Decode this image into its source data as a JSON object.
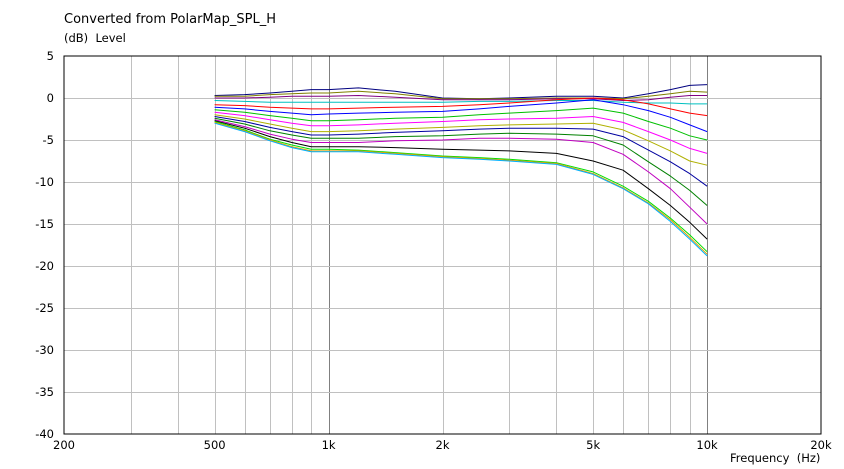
{
  "chart_data": {
    "type": "line",
    "title": "Converted from PolarMap_SPL_H",
    "ylabel": "(dB)  Level",
    "xlabel": "Frequency  (Hz)",
    "x_scale": "log",
    "xlim": [
      200,
      20000
    ],
    "ylim": [
      -40,
      5
    ],
    "grid": true,
    "legend": "none",
    "x_tick_labels": [
      {
        "value": 200,
        "label": "200"
      },
      {
        "value": 500,
        "label": "500"
      },
      {
        "value": 1000,
        "label": "1k"
      },
      {
        "value": 2000,
        "label": "2k"
      },
      {
        "value": 5000,
        "label": "5k"
      },
      {
        "value": 10000,
        "label": "10k"
      },
      {
        "value": 20000,
        "label": "20k"
      }
    ],
    "y_ticks": [
      5,
      0,
      -5,
      -10,
      -15,
      -20,
      -25,
      -30,
      -35,
      -40
    ],
    "x": [
      500,
      600,
      700,
      800,
      900,
      1000,
      1200,
      1500,
      2000,
      2500,
      3000,
      4000,
      5000,
      6000,
      7000,
      8000,
      9000,
      10000
    ],
    "series": [
      {
        "color": "#000080",
        "values": [
          0.3,
          0.4,
          0.6,
          0.8,
          1.0,
          1.0,
          1.2,
          0.8,
          0.0,
          -0.1,
          0.0,
          0.2,
          0.2,
          0.0,
          0.5,
          1.0,
          1.5,
          1.6
        ]
      },
      {
        "color": "#808000",
        "values": [
          0.2,
          0.2,
          0.4,
          0.5,
          0.6,
          0.6,
          0.8,
          0.5,
          -0.1,
          -0.1,
          -0.1,
          0.0,
          0.0,
          -0.1,
          0.2,
          0.5,
          0.8,
          0.7
        ]
      },
      {
        "color": "#800080",
        "values": [
          0.0,
          0.0,
          0.1,
          0.2,
          0.2,
          0.2,
          0.3,
          0.1,
          -0.2,
          -0.2,
          -0.2,
          -0.1,
          -0.1,
          -0.3,
          -0.2,
          0.1,
          0.3,
          0.3
        ]
      },
      {
        "color": "#00c0c0",
        "values": [
          -0.3,
          -0.4,
          -0.5,
          -0.5,
          -0.5,
          -0.5,
          -0.5,
          -0.5,
          -0.5,
          -0.4,
          -0.4,
          -0.3,
          -0.3,
          -0.5,
          -0.6,
          -0.6,
          -0.7,
          -0.7
        ]
      },
      {
        "color": "#ff0000",
        "values": [
          -0.8,
          -0.9,
          -1.1,
          -1.2,
          -1.3,
          -1.3,
          -1.2,
          -1.1,
          -1.0,
          -0.8,
          -0.6,
          -0.2,
          0.0,
          -0.2,
          -0.7,
          -1.3,
          -1.8,
          -2.1
        ]
      },
      {
        "color": "#0000ff",
        "values": [
          -1.1,
          -1.3,
          -1.6,
          -1.8,
          -2.0,
          -1.9,
          -1.8,
          -1.7,
          -1.6,
          -1.3,
          -1.0,
          -0.6,
          -0.2,
          -0.8,
          -1.5,
          -2.3,
          -3.2,
          -4.0
        ]
      },
      {
        "color": "#00c000",
        "values": [
          -1.4,
          -1.7,
          -2.1,
          -2.4,
          -2.7,
          -2.7,
          -2.6,
          -2.4,
          -2.3,
          -2.0,
          -1.8,
          -1.5,
          -1.2,
          -1.8,
          -2.8,
          -3.6,
          -4.5,
          -5.0
        ]
      },
      {
        "color": "#ff00ff",
        "values": [
          -1.7,
          -2.1,
          -2.6,
          -3.0,
          -3.3,
          -3.3,
          -3.2,
          -3.0,
          -2.8,
          -2.6,
          -2.5,
          -2.4,
          -2.2,
          -2.9,
          -4.0,
          -5.0,
          -6.0,
          -6.6
        ]
      },
      {
        "color": "#b0b000",
        "values": [
          -2.0,
          -2.5,
          -3.1,
          -3.6,
          -4.0,
          -4.0,
          -3.9,
          -3.7,
          -3.5,
          -3.3,
          -3.2,
          -3.1,
          -3.0,
          -3.8,
          -5.1,
          -6.3,
          -7.5,
          -8.0
        ]
      },
      {
        "color": "#0000a0",
        "values": [
          -2.2,
          -2.8,
          -3.5,
          -4.0,
          -4.4,
          -4.4,
          -4.3,
          -4.1,
          -3.9,
          -3.7,
          -3.6,
          -3.6,
          -3.7,
          -4.6,
          -6.2,
          -7.6,
          -9.0,
          -10.5
        ]
      },
      {
        "color": "#008000",
        "values": [
          -2.4,
          -3.1,
          -3.9,
          -4.4,
          -4.8,
          -4.8,
          -4.8,
          -4.6,
          -4.5,
          -4.3,
          -4.2,
          -4.3,
          -4.5,
          -5.6,
          -7.6,
          -9.3,
          -11.0,
          -12.8
        ]
      },
      {
        "color": "#c000c0",
        "values": [
          -2.6,
          -3.4,
          -4.3,
          -4.9,
          -5.3,
          -5.3,
          -5.3,
          -5.1,
          -5.0,
          -4.8,
          -4.8,
          -4.9,
          -5.3,
          -6.7,
          -8.8,
          -10.8,
          -13.0,
          -15.0
        ]
      },
      {
        "color": "#000000",
        "values": [
          -2.7,
          -3.6,
          -4.6,
          -5.3,
          -5.8,
          -5.8,
          -5.8,
          -5.9,
          -6.1,
          -6.2,
          -6.3,
          -6.6,
          -7.5,
          -8.6,
          -10.8,
          -12.8,
          -14.8,
          -16.8
        ]
      },
      {
        "color": "#00e000",
        "values": [
          -2.8,
          -3.8,
          -4.9,
          -5.6,
          -6.1,
          -6.1,
          -6.2,
          -6.5,
          -6.9,
          -7.1,
          -7.3,
          -7.7,
          -8.8,
          -10.5,
          -12.3,
          -14.3,
          -16.3,
          -18.3
        ]
      },
      {
        "color": "#e0a000",
        "values": [
          -2.9,
          -3.9,
          -5.0,
          -5.8,
          -6.3,
          -6.3,
          -6.3,
          -6.6,
          -7.0,
          -7.2,
          -7.4,
          -7.8,
          -9.0,
          -10.7,
          -12.5,
          -14.5,
          -16.6,
          -18.6
        ]
      },
      {
        "color": "#00b0ff",
        "values": [
          -3.0,
          -4.0,
          -5.1,
          -5.9,
          -6.4,
          -6.4,
          -6.4,
          -6.7,
          -7.1,
          -7.3,
          -7.5,
          -7.9,
          -9.1,
          -10.8,
          -12.6,
          -14.7,
          -16.8,
          -18.8
        ]
      }
    ]
  }
}
